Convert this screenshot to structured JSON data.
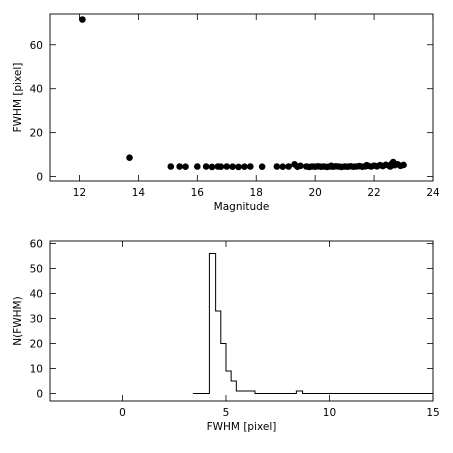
{
  "chart_data": [
    {
      "type": "scatter",
      "xlabel": "Magnitude",
      "ylabel": "FWHM [pixel]",
      "xlim": [
        11,
        24
      ],
      "ylim": [
        -2,
        74
      ],
      "xticks": [
        12,
        14,
        16,
        18,
        20,
        22,
        24
      ],
      "yticks": [
        0,
        20,
        40,
        60
      ],
      "point_color": "#000000",
      "points": [
        [
          12.1,
          71.5
        ],
        [
          13.7,
          8.6
        ],
        [
          15.1,
          4.6
        ],
        [
          15.4,
          4.6
        ],
        [
          15.6,
          4.5
        ],
        [
          16.0,
          4.6
        ],
        [
          16.3,
          4.6
        ],
        [
          16.5,
          4.4
        ],
        [
          16.7,
          4.6
        ],
        [
          16.8,
          4.5
        ],
        [
          17.0,
          4.6
        ],
        [
          17.2,
          4.5
        ],
        [
          17.4,
          4.4
        ],
        [
          17.6,
          4.5
        ],
        [
          17.8,
          4.6
        ],
        [
          18.2,
          4.5
        ],
        [
          18.7,
          4.6
        ],
        [
          18.9,
          4.5
        ],
        [
          19.1,
          4.6
        ],
        [
          19.3,
          5.6
        ],
        [
          19.4,
          4.5
        ],
        [
          19.5,
          4.9
        ],
        [
          19.7,
          4.6
        ],
        [
          19.8,
          4.4
        ],
        [
          19.9,
          4.6
        ],
        [
          20.0,
          4.5
        ],
        [
          20.1,
          4.7
        ],
        [
          20.2,
          4.5
        ],
        [
          20.3,
          4.6
        ],
        [
          20.4,
          4.4
        ],
        [
          20.5,
          4.6
        ],
        [
          20.6,
          4.5
        ],
        [
          20.7,
          4.7
        ],
        [
          20.8,
          4.6
        ],
        [
          20.9,
          4.4
        ],
        [
          21.0,
          4.6
        ],
        [
          21.1,
          4.5
        ],
        [
          21.2,
          4.7
        ],
        [
          21.3,
          4.5
        ],
        [
          21.4,
          4.6
        ],
        [
          21.5,
          4.8
        ],
        [
          21.6,
          4.5
        ],
        [
          21.7,
          4.7
        ],
        [
          21.8,
          4.9
        ],
        [
          21.9,
          4.6
        ],
        [
          22.0,
          5.0
        ],
        [
          22.1,
          4.7
        ],
        [
          22.2,
          5.2
        ],
        [
          22.3,
          4.8
        ],
        [
          22.4,
          5.4
        ],
        [
          22.5,
          5.0
        ],
        [
          22.6,
          5.8
        ],
        [
          22.65,
          6.6
        ],
        [
          22.7,
          5.2
        ],
        [
          22.8,
          5.6
        ],
        [
          22.9,
          4.9
        ],
        [
          23.0,
          5.3
        ],
        [
          22.55,
          4.6
        ],
        [
          21.75,
          5.2
        ],
        [
          20.55,
          4.9
        ]
      ]
    },
    {
      "type": "histogram",
      "xlabel": "FWHM [pixel]",
      "ylabel": "N(FWHM)",
      "xlim": [
        -3.5,
        15
      ],
      "ylim": [
        -3,
        61
      ],
      "xticks": [
        0,
        5,
        10,
        15
      ],
      "yticks": [
        0,
        10,
        20,
        30,
        40,
        50,
        60
      ],
      "line_color": "#000000",
      "steps": [
        [
          3.4,
          0
        ],
        [
          4.2,
          56
        ],
        [
          4.5,
          33
        ],
        [
          4.75,
          20
        ],
        [
          5.0,
          9
        ],
        [
          5.25,
          5
        ],
        [
          5.5,
          1
        ],
        [
          6.4,
          0
        ],
        [
          8.4,
          1
        ],
        [
          8.7,
          0
        ],
        [
          15.0,
          0
        ]
      ]
    }
  ]
}
